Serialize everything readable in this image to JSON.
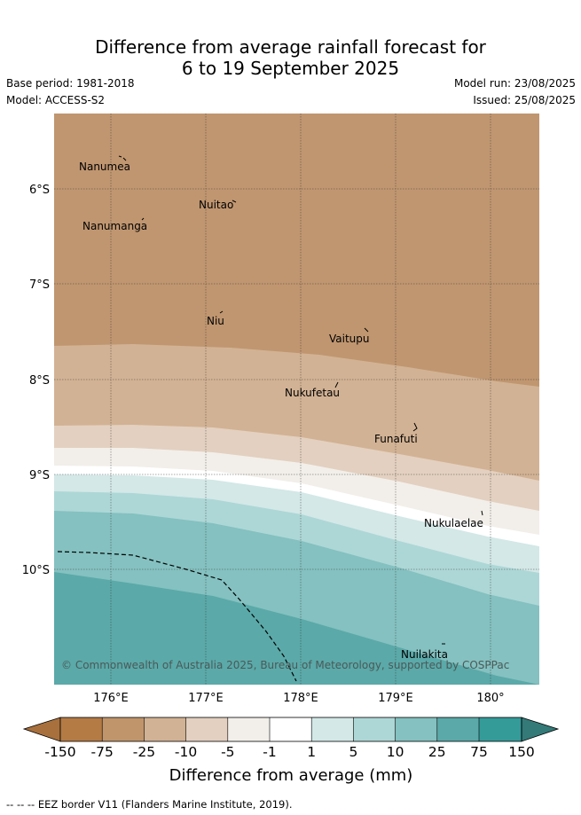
{
  "title": {
    "line1": "Difference from average rainfall forecast for",
    "line2": "6 to 19 September 2025"
  },
  "meta": {
    "base_period": "Base period: 1981-2018",
    "model": "Model: ACCESS-S2",
    "model_run": "Model run: 23/08/2025",
    "issued": "Issued: 25/08/2025"
  },
  "map": {
    "credit": "© Commonwealth of Australia 2025, Bureau of Meteorology, supported by COSPPac",
    "lon_labels": [
      "176°E",
      "177°E",
      "178°E",
      "179°E",
      "180°"
    ],
    "lat_labels": [
      "6°S",
      "7°S",
      "8°S",
      "9°S",
      "10°S"
    ],
    "places": [
      {
        "name": "Nanumea"
      },
      {
        "name": "Nuitao"
      },
      {
        "name": "Nanumanga"
      },
      {
        "name": "Niu"
      },
      {
        "name": "Vaitupu"
      },
      {
        "name": "Nukufetau"
      },
      {
        "name": "Funafuti"
      },
      {
        "name": "Nukulaelae"
      },
      {
        "name": "Nuilakita"
      }
    ],
    "land_color": "#c09670"
  },
  "colorbar": {
    "title": "Difference from average (mm)",
    "ticks": [
      "-150",
      "-75",
      "-25",
      "-10",
      "-5",
      "-1",
      "1",
      "5",
      "10",
      "25",
      "75",
      "150"
    ],
    "colors": [
      "#a8703c",
      "#b47b45",
      "#c0956b",
      "#d2b294",
      "#e3d0c0",
      "#f2efea",
      "#ffffff",
      "#d3e8e7",
      "#add7d6",
      "#84c1c0",
      "#5ba9a9",
      "#349b99",
      "#337a78"
    ]
  },
  "footnote": "--  --  -- EEZ border V11 (Flanders Marine Institute, 2019)."
}
